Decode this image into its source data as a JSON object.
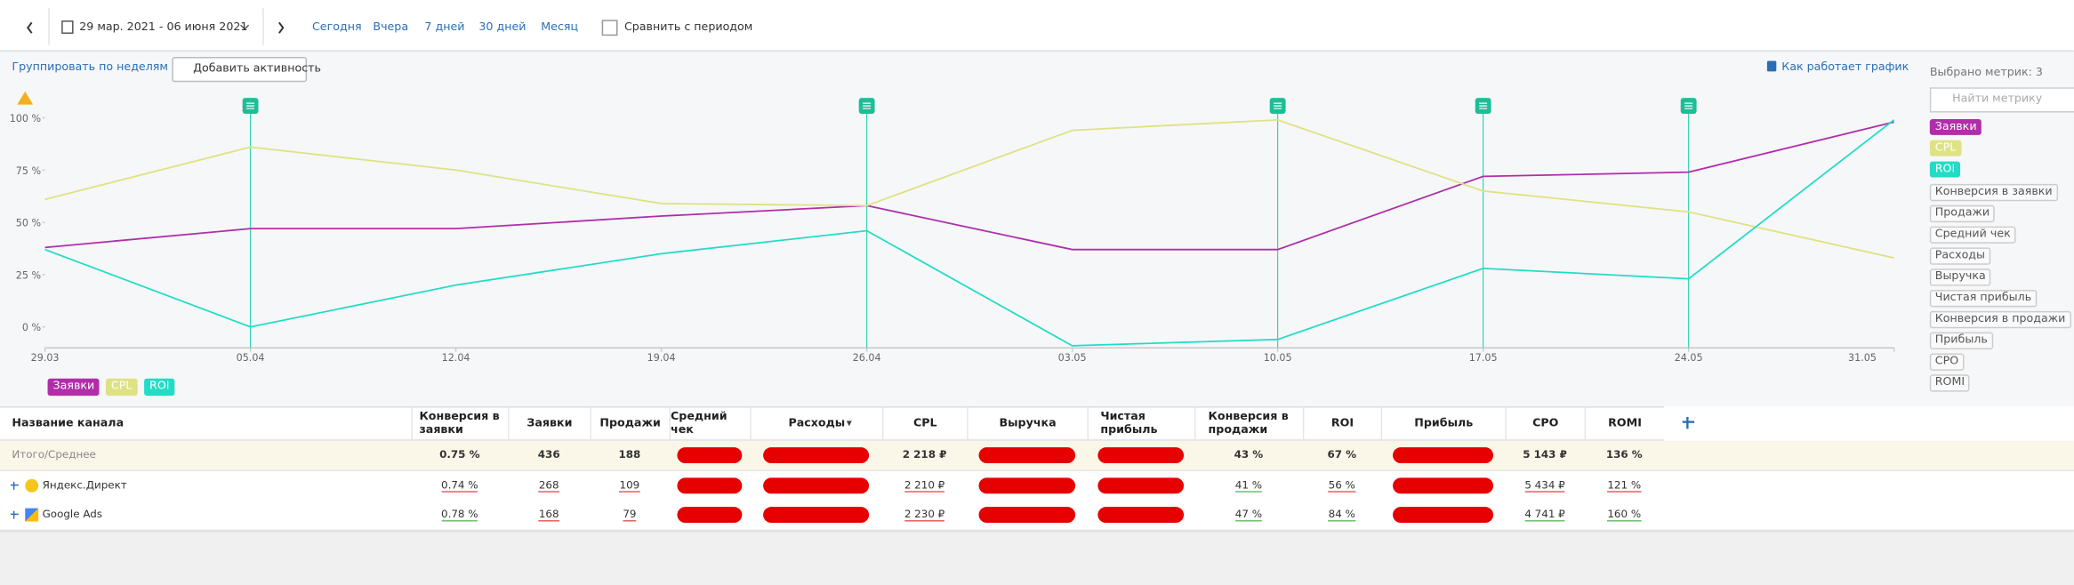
{
  "toolbar": {
    "date_range": "29 мар. 2021 - 06 июня 2021",
    "presets": [
      "Сегодня",
      "Вчера",
      "7 дней",
      "30 дней",
      "Месяц"
    ],
    "compare": "Сравнить с периодом"
  },
  "controls": {
    "group_by": "Группировать по неделям",
    "add_activity": "Добавить активность",
    "help": "Как работает график"
  },
  "chart_data": {
    "type": "line",
    "categories": [
      "29.03",
      "05.04",
      "12.04",
      "19.04",
      "26.04",
      "03.05",
      "10.05",
      "17.05",
      "24.05",
      "31.05"
    ],
    "ylim": [
      -10,
      100
    ],
    "yticks": [
      {
        "value": 0,
        "label": "0 %"
      },
      {
        "value": 25,
        "label": "25 %"
      },
      {
        "value": 50,
        "label": "50 %"
      },
      {
        "value": 75,
        "label": "75 %"
      },
      {
        "value": 100,
        "label": "100 %"
      }
    ],
    "series": [
      {
        "name": "Заявки",
        "color": "#b02ea9",
        "values": [
          38,
          47,
          47,
          53,
          58,
          37,
          37,
          72,
          74,
          98
        ]
      },
      {
        "name": "CPL",
        "color": "#dfe282",
        "values": [
          61,
          86,
          75,
          59,
          58,
          94,
          99,
          65,
          55,
          33
        ]
      },
      {
        "name": "ROI",
        "color": "#22dcc6",
        "values": [
          37,
          0,
          20,
          35,
          46,
          -9,
          -6,
          28,
          23,
          99
        ]
      }
    ]
  },
  "metrics_panel": {
    "title": "Выбрано метрик: 3",
    "search_placeholder": "Найти метрику",
    "other_metrics": [
      "Конверсия в заявки",
      "Продажи",
      "Средний чек",
      "Расходы",
      "Выручка",
      "Чистая прибыль",
      "Конверсия в продажи",
      "Прибыль",
      "CPO",
      "ROMI"
    ]
  },
  "table": {
    "columns": [
      "Название канала",
      "Конверсия в заявки",
      "Заявки",
      "Продажи",
      "Средний чек",
      "Расходы",
      "CPL",
      "Выручка",
      "Чистая прибыль",
      "Конверсия в продажи",
      "ROI",
      "Прибыль",
      "CPO",
      "ROMI"
    ],
    "rows": [
      [
        "Итого/Среднее",
        "0.75 %",
        "436",
        "188",
        null,
        null,
        "2 218 ₽",
        null,
        null,
        "43 %",
        "67 %",
        null,
        "5 143 ₽",
        "136 %"
      ],
      [
        "Яндекс.Директ",
        "0.74 %",
        "268",
        "109",
        null,
        null,
        "2 210 ₽",
        null,
        null,
        "41 %",
        "56 %",
        null,
        "5 434 ₽",
        "121 %"
      ],
      [
        "Google Ads",
        "0.78 %",
        "168",
        "79",
        null,
        null,
        "2 230 ₽",
        null,
        null,
        "47 %",
        "84 %",
        null,
        "4 741 ₽",
        "160 %"
      ]
    ]
  }
}
